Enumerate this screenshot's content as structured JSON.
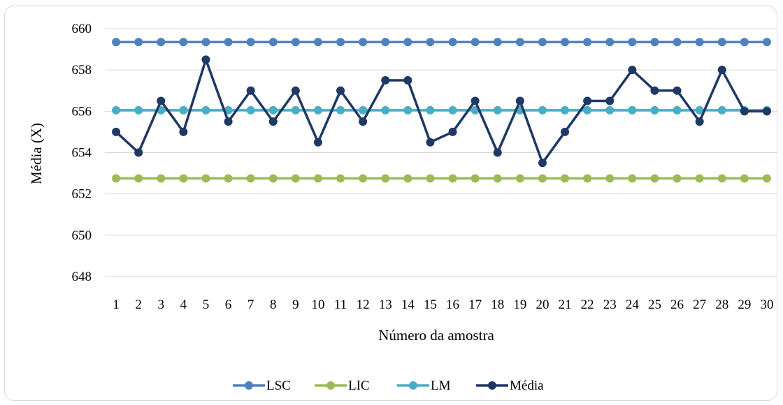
{
  "chart_data": {
    "type": "line",
    "title": "",
    "xlabel": "Número da amostra",
    "ylabel": "Média (X)",
    "categories": [
      "1",
      "2",
      "3",
      "4",
      "5",
      "6",
      "7",
      "8",
      "9",
      "10",
      "11",
      "12",
      "13",
      "14",
      "15",
      "16",
      "17",
      "18",
      "19",
      "20",
      "21",
      "22",
      "23",
      "24",
      "25",
      "26",
      "27",
      "28",
      "29",
      "30"
    ],
    "y_ticks": [
      648,
      650,
      652,
      654,
      656,
      658,
      660
    ],
    "ylim": [
      648,
      660
    ],
    "grid": true,
    "legend_position": "bottom",
    "series": [
      {
        "name": "LSC",
        "color": "#4f81bd",
        "values": [
          659.35,
          659.35,
          659.35,
          659.35,
          659.35,
          659.35,
          659.35,
          659.35,
          659.35,
          659.35,
          659.35,
          659.35,
          659.35,
          659.35,
          659.35,
          659.35,
          659.35,
          659.35,
          659.35,
          659.35,
          659.35,
          659.35,
          659.35,
          659.35,
          659.35,
          659.35,
          659.35,
          659.35,
          659.35,
          659.35
        ]
      },
      {
        "name": "LIC",
        "color": "#9bbb59",
        "values": [
          652.75,
          652.75,
          652.75,
          652.75,
          652.75,
          652.75,
          652.75,
          652.75,
          652.75,
          652.75,
          652.75,
          652.75,
          652.75,
          652.75,
          652.75,
          652.75,
          652.75,
          652.75,
          652.75,
          652.75,
          652.75,
          652.75,
          652.75,
          652.75,
          652.75,
          652.75,
          652.75,
          652.75,
          652.75,
          652.75
        ]
      },
      {
        "name": "LM",
        "color": "#4bacc6",
        "values": [
          656.05,
          656.05,
          656.05,
          656.05,
          656.05,
          656.05,
          656.05,
          656.05,
          656.05,
          656.05,
          656.05,
          656.05,
          656.05,
          656.05,
          656.05,
          656.05,
          656.05,
          656.05,
          656.05,
          656.05,
          656.05,
          656.05,
          656.05,
          656.05,
          656.05,
          656.05,
          656.05,
          656.05,
          656.05,
          656.05
        ]
      },
      {
        "name": "Média",
        "color": "#1f3864",
        "values": [
          655,
          654,
          656.5,
          655,
          658.5,
          655.5,
          657,
          655.5,
          657,
          654.5,
          657,
          655.5,
          657.5,
          657.5,
          654.5,
          655,
          656.5,
          654,
          656.5,
          653.5,
          655,
          656.5,
          656.5,
          658,
          657,
          657,
          655.5,
          658,
          656,
          656
        ]
      }
    ]
  }
}
